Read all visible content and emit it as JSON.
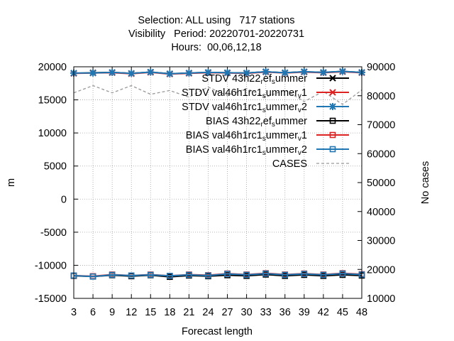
{
  "chart_data": {
    "type": "line",
    "title": [
      "Selection: ALL using   717 stations",
      "Visibility   Period: 20220701-20220731",
      "Hours:  00,06,12,18"
    ],
    "xlabel": "Forecast length",
    "ylabel": "m",
    "y2label": "No cases",
    "x": [
      3,
      6,
      9,
      12,
      15,
      18,
      21,
      24,
      27,
      30,
      33,
      36,
      39,
      42,
      45,
      48
    ],
    "xlim": [
      3,
      48
    ],
    "ylim": [
      -15000,
      20000
    ],
    "y2lim": [
      10000,
      90000
    ],
    "y_ticks": [
      20000,
      15000,
      10000,
      5000,
      0,
      -5000,
      -10000,
      -15000
    ],
    "y2_ticks": [
      90000,
      80000,
      70000,
      60000,
      50000,
      40000,
      30000,
      20000,
      10000
    ],
    "grid": true,
    "legend_placement": "top-right",
    "series": [
      {
        "name": "STDV 43h22_ref_summer",
        "legend_parts": [
          [
            "STDV 43h22",
            ""
          ],
          [
            "r",
            "sub"
          ],
          [
            "ef",
            ""
          ],
          [
            "s",
            "sub"
          ],
          [
            "ummer",
            ""
          ]
        ],
        "axis": "y",
        "color": "#000000",
        "marker": "x",
        "dash": "",
        "values": [
          19000,
          19100,
          19150,
          19000,
          19200,
          18950,
          19050,
          19150,
          19100,
          19050,
          19250,
          19100,
          19250,
          19150,
          19300,
          19150
        ]
      },
      {
        "name": "STDV val46h1rc1_summer_v1",
        "legend_parts": [
          [
            "STDV val46h1rc1",
            ""
          ],
          [
            "s",
            "sub"
          ],
          [
            "ummer",
            ""
          ],
          [
            "v",
            "sub"
          ],
          [
            "1",
            ""
          ]
        ],
        "axis": "y",
        "color": "#dd2222",
        "marker": "x",
        "dash": "",
        "values": [
          19000,
          19050,
          19100,
          18950,
          19150,
          18900,
          19000,
          19100,
          19050,
          19000,
          19200,
          19050,
          19200,
          19100,
          19250,
          19100
        ]
      },
      {
        "name": "STDV val46h1rc1_summer_v2",
        "legend_parts": [
          [
            "STDV val46h1rc1",
            ""
          ],
          [
            "s",
            "sub"
          ],
          [
            "ummer",
            ""
          ],
          [
            "v",
            "sub"
          ],
          [
            "2",
            ""
          ]
        ],
        "axis": "y",
        "color": "#1f77b4",
        "marker": "star",
        "dash": "",
        "values": [
          19050,
          19050,
          19150,
          19000,
          19200,
          18950,
          19050,
          19150,
          19100,
          19050,
          19250,
          19100,
          19250,
          19150,
          19300,
          19150
        ]
      },
      {
        "name": "BIAS 43h22_ref_summer",
        "legend_parts": [
          [
            "BIAS 43h22",
            ""
          ],
          [
            "r",
            "sub"
          ],
          [
            "ef",
            ""
          ],
          [
            "s",
            "sub"
          ],
          [
            "ummer",
            ""
          ]
        ],
        "axis": "y",
        "color": "#000000",
        "marker": "square",
        "dash": "",
        "values": [
          -11600,
          -11700,
          -11500,
          -11650,
          -11500,
          -11750,
          -11550,
          -11650,
          -11500,
          -11600,
          -11400,
          -11600,
          -11450,
          -11600,
          -11450,
          -11550
        ]
      },
      {
        "name": "BIAS val46h1rc1_summer_v1",
        "legend_parts": [
          [
            "BIAS val46h1rc1",
            ""
          ],
          [
            "s",
            "sub"
          ],
          [
            "ummer",
            ""
          ],
          [
            "v",
            "sub"
          ],
          [
            "1",
            ""
          ]
        ],
        "axis": "y",
        "color": "#dd2222",
        "marker": "square",
        "dash": "",
        "values": [
          -11550,
          -11650,
          -11400,
          -11550,
          -11400,
          -11600,
          -11400,
          -11500,
          -11250,
          -11400,
          -11200,
          -11400,
          -11250,
          -11400,
          -11200,
          -11350
        ]
      },
      {
        "name": "BIAS val46h1rc1_summer_v2",
        "legend_parts": [
          [
            "BIAS val46h1rc1",
            ""
          ],
          [
            "s",
            "sub"
          ],
          [
            "ummer",
            ""
          ],
          [
            "v",
            "sub"
          ],
          [
            "2",
            ""
          ]
        ],
        "axis": "y",
        "color": "#1f77b4",
        "marker": "square",
        "dash": "",
        "values": [
          -11550,
          -11700,
          -11450,
          -11550,
          -11450,
          -11600,
          -11450,
          -11550,
          -11300,
          -11450,
          -11250,
          -11450,
          -11300,
          -11450,
          -11250,
          -11400
        ]
      },
      {
        "name": "CASES",
        "legend_parts": [
          [
            "CASES",
            ""
          ]
        ],
        "axis": "y2",
        "color": "#999999",
        "marker": "none",
        "dash": "4,3",
        "values": [
          81000,
          83500,
          81000,
          83500,
          80500,
          81800,
          79500,
          83000,
          80000,
          82500,
          79500,
          82000,
          78000,
          81500,
          77000,
          82000
        ]
      }
    ]
  }
}
